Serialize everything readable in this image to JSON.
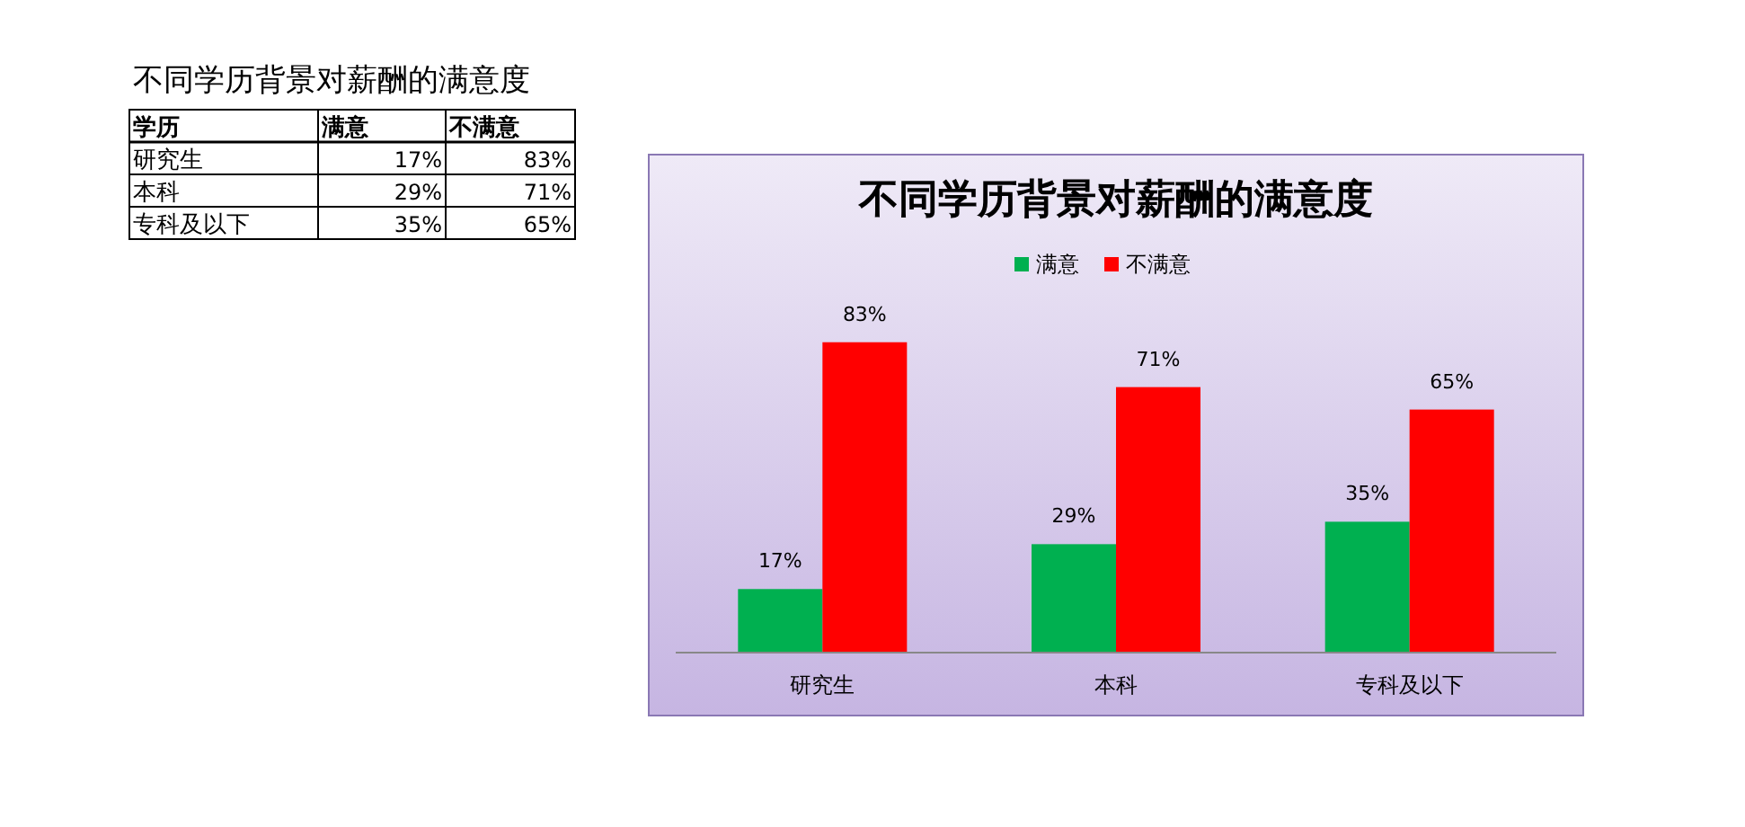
{
  "chart_data": {
    "type": "bar",
    "title": "不同学历背景对薪酬的满意度",
    "categories": [
      "研究生",
      "本科",
      "专科及以下"
    ],
    "series": [
      {
        "name": "满意",
        "color": "#00b050",
        "values": [
          17,
          29,
          35
        ],
        "value_labels": [
          "17%",
          "29%",
          "35%"
        ]
      },
      {
        "name": "不满意",
        "color": "#ff0000",
        "values": [
          83,
          71,
          65
        ],
        "value_labels": [
          "83%",
          "71%",
          "65%"
        ]
      }
    ],
    "legend": "top",
    "annotations": [
      "不同学历背景对薪酬的满意度",
      "学历"
    ]
  }
}
